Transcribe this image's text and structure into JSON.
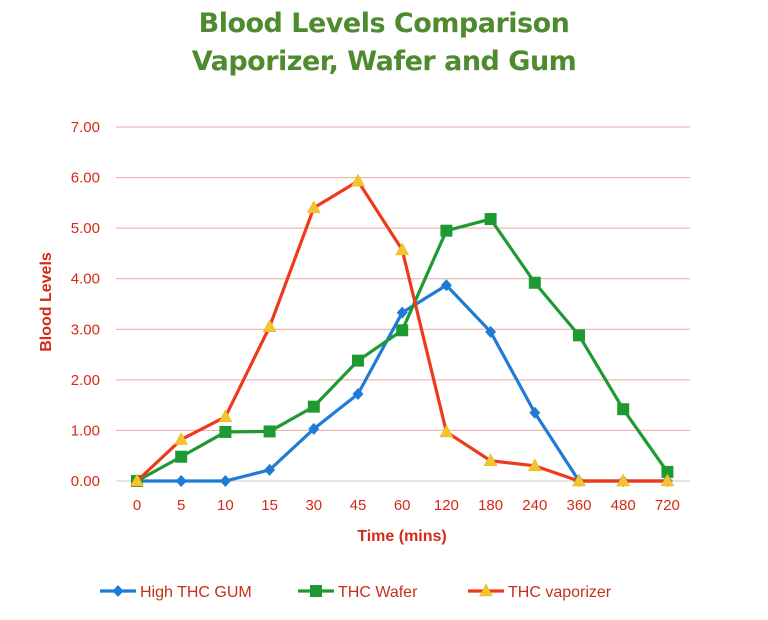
{
  "chart_data": {
    "type": "line",
    "title_line1": "Blood Levels Comparison",
    "title_line2": "Vaporizer, Wafer and Gum",
    "xlabel": "Time (mins)",
    "ylabel": "Blood Levels",
    "categories": [
      "0",
      "5",
      "10",
      "15",
      "30",
      "45",
      "60",
      "120",
      "180",
      "240",
      "360",
      "480",
      "720"
    ],
    "ylim": [
      0,
      7
    ],
    "yticks": [
      "0.00",
      "1.00",
      "2.00",
      "3.00",
      "4.00",
      "5.00",
      "6.00",
      "7.00"
    ],
    "grid": true,
    "legend_position": "bottom",
    "series": [
      {
        "name": "High THC GUM",
        "color": "#1f7bd6",
        "marker": "diamond",
        "values": [
          0,
          0,
          0,
          0.22,
          1.03,
          1.72,
          3.33,
          3.87,
          2.95,
          1.35,
          0,
          0,
          0
        ]
      },
      {
        "name": "THC Wafer",
        "color": "#1f9a32",
        "marker": "square",
        "values": [
          0,
          0.48,
          0.97,
          0.98,
          1.47,
          2.38,
          2.98,
          4.95,
          5.18,
          3.92,
          2.88,
          1.42,
          0.18
        ]
      },
      {
        "name": "THC vaporizer",
        "color": "#ee3a1c",
        "marker": "triangle",
        "values": [
          0,
          0.82,
          1.27,
          3.05,
          5.4,
          5.93,
          4.57,
          0.97,
          0.4,
          0.3,
          0,
          0,
          0
        ]
      }
    ]
  }
}
